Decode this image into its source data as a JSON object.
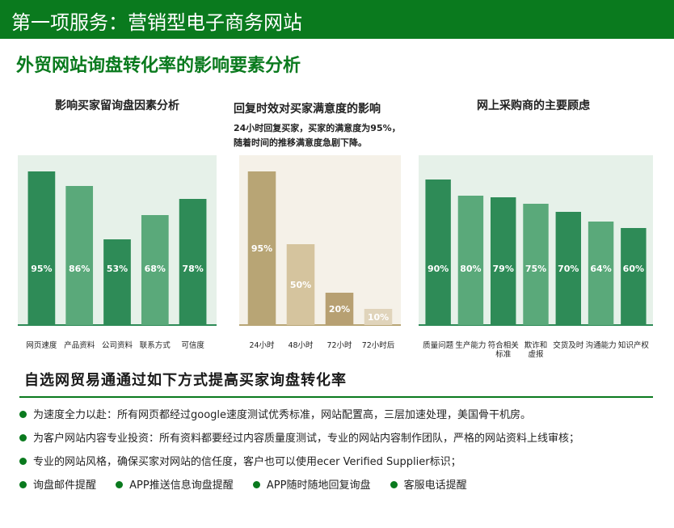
{
  "header": {
    "title": "第一项服务：营销型电子商务网站"
  },
  "subtitle": "外贸网站询盘转化率的影响要素分析",
  "colors": {
    "brand": "#0a7a1e",
    "green_dark": "#2e8b57",
    "green_light": "#5aa97a",
    "gold_1": "#b8a575",
    "gold_2": "#d5c49e",
    "gold_3": "#b7a072",
    "gold_4": "#e0d4bb"
  },
  "chart_data": [
    {
      "type": "bar",
      "title": "影响买家留询盘因素分析",
      "categories": [
        "网页速度",
        "产品资料",
        "公司资料",
        "联系方式",
        "可信度"
      ],
      "values": [
        95,
        86,
        53,
        68,
        78
      ],
      "labels": [
        "95%",
        "86%",
        "53%",
        "68%",
        "78%"
      ],
      "ylim": [
        0,
        100
      ],
      "grid": false
    },
    {
      "type": "bar",
      "title": "回复时效对买家满意度的影响",
      "annotation": [
        "24小时回复买家，买家的满意度为95%，",
        "随着时间的推移满意度急剧下降。"
      ],
      "categories": [
        "24小时",
        "48小时",
        "72小时",
        "72小时后"
      ],
      "values": [
        95,
        50,
        20,
        10
      ],
      "labels": [
        "95%",
        "50%",
        "20%",
        "10%"
      ],
      "ylim": [
        0,
        100
      ],
      "grid": false
    },
    {
      "type": "bar",
      "title": "网上采购商的主要顾虑",
      "categories": [
        [
          "质量问题"
        ],
        [
          "生产能力"
        ],
        [
          "符合相关",
          "标准"
        ],
        [
          "欺诈和",
          "虚报"
        ],
        [
          "交货及时"
        ],
        [
          "沟通能力"
        ],
        [
          "知识产权"
        ]
      ],
      "values": [
        90,
        80,
        79,
        75,
        70,
        64,
        60
      ],
      "labels": [
        "90%",
        "80%",
        "79%",
        "75%",
        "70%",
        "64%",
        "60%"
      ],
      "ylim": [
        0,
        100
      ],
      "grid": false
    }
  ],
  "section_title": "自选网贸易通通过如下方式提高买家询盘转化率",
  "bullets": [
    [
      "为速度全力以赴：所有网页都经过google速度测试优秀标准，网站配置高，三层加速处理，美国骨干机房。"
    ],
    [
      "为客户网站内容专业投资：所有资料都要经过内容质量度测试，专业的网站内容制作团队，严格的网站资料上线审核；"
    ],
    [
      "专业的网站风格，确保买家对网站的信任度，客户也可以使用ecer Verified Supplier标识；"
    ],
    [
      "询盘邮件提醒",
      "APP推送信息询盘提醒",
      "APP随时随地回复询盘",
      "客服电话提醒"
    ]
  ]
}
